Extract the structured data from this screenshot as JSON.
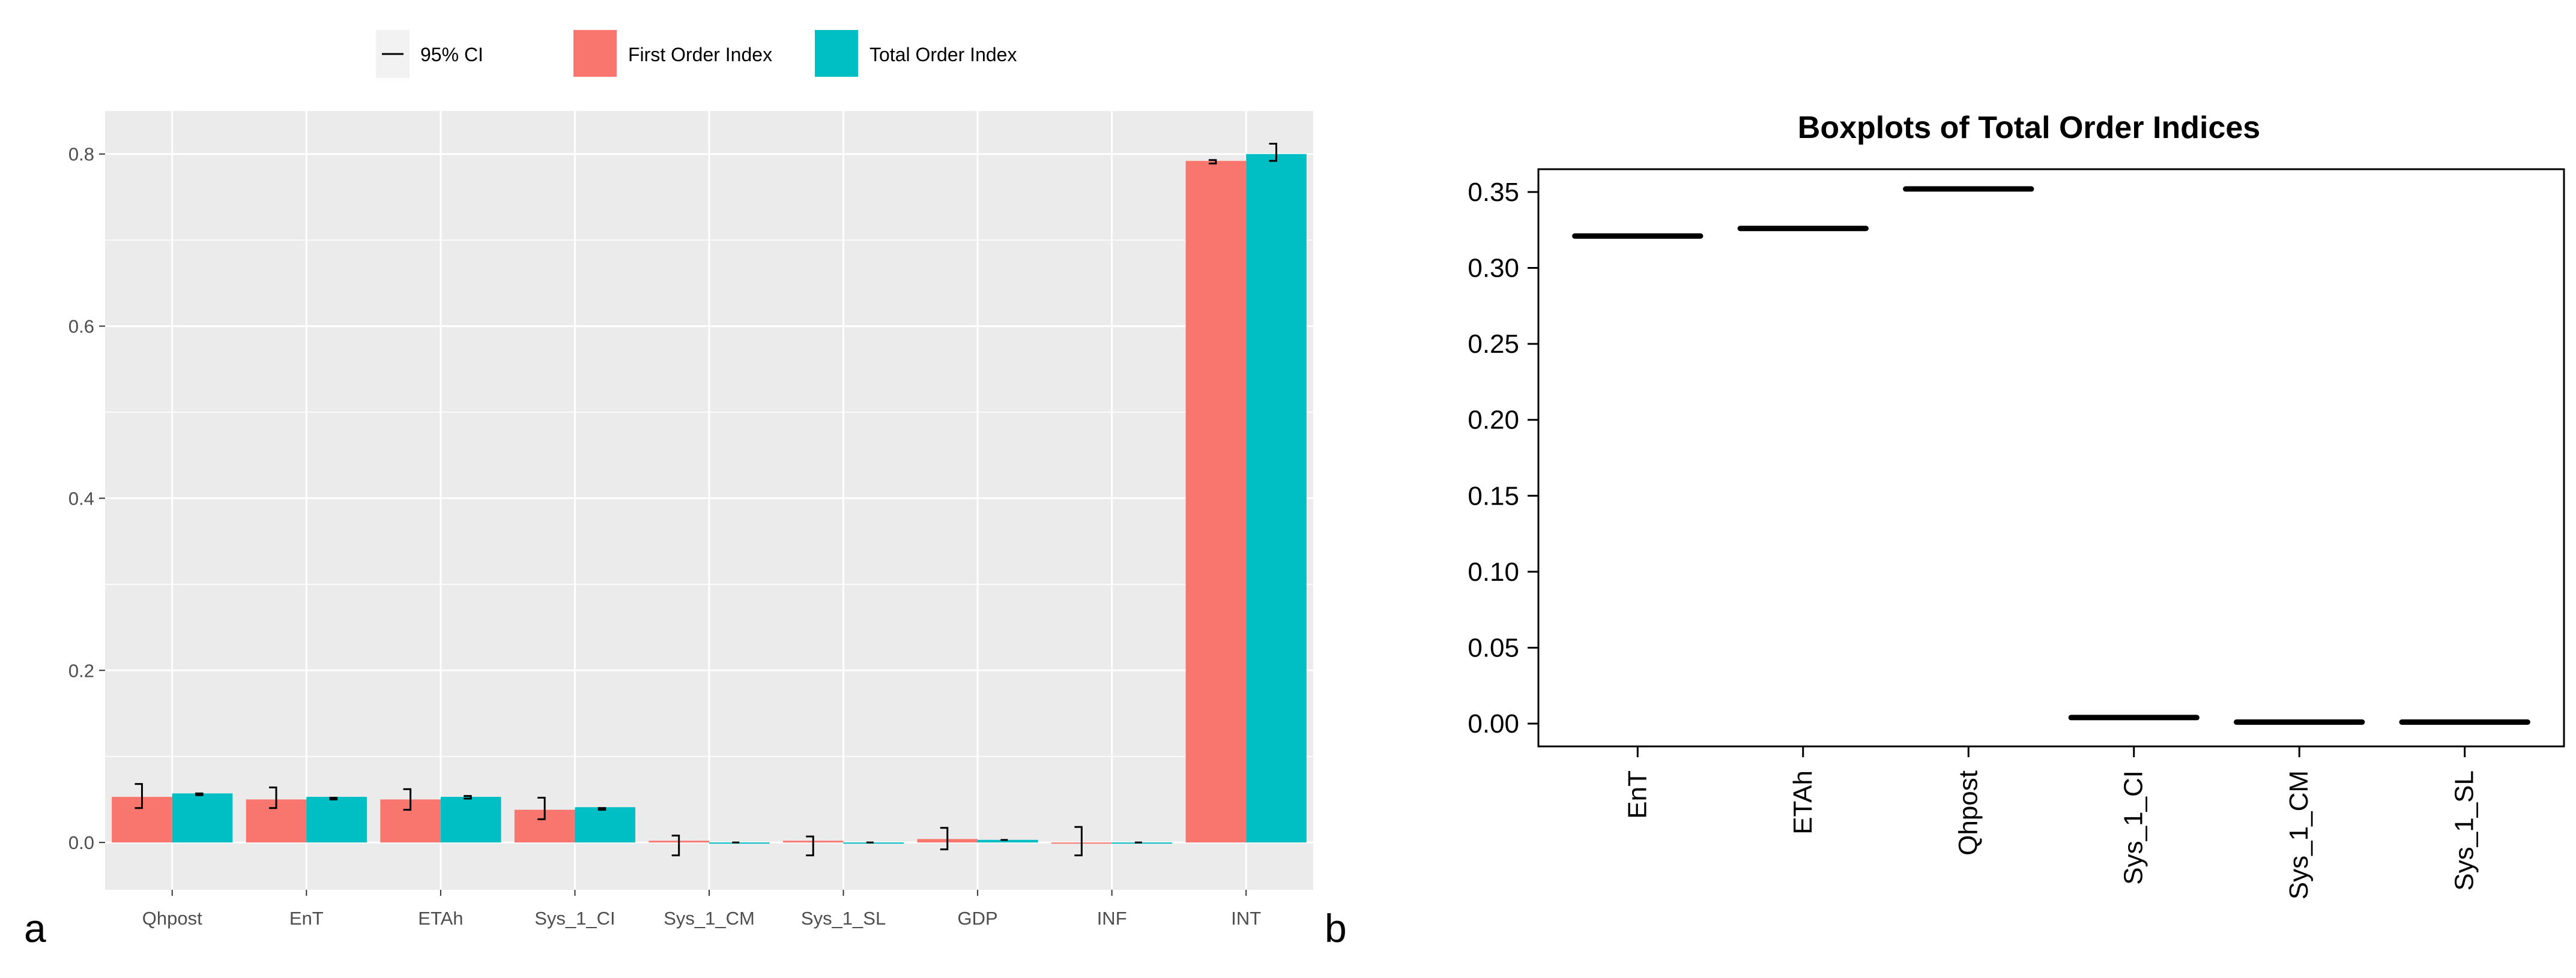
{
  "chart_data": [
    {
      "type": "bar",
      "panel_label": "a",
      "categories": [
        "Qhpost",
        "EnT",
        "ETAh",
        "Sys_1_CI",
        "Sys_1_CM",
        "Sys_1_SL",
        "GDP",
        "INF",
        "INT"
      ],
      "series": [
        {
          "name": "First Order Index",
          "color": "#F8766D",
          "values": [
            0.053,
            0.05,
            0.05,
            0.038,
            0.002,
            0.002,
            0.004,
            0.0,
            0.792
          ],
          "ci": [
            [
              0.04,
              0.068
            ],
            [
              0.04,
              0.064
            ],
            [
              0.038,
              0.062
            ],
            [
              0.027,
              0.052
            ],
            [
              -0.015,
              0.008
            ],
            [
              -0.015,
              0.007
            ],
            [
              -0.008,
              0.017
            ],
            [
              -0.015,
              0.018
            ],
            [
              0.789,
              0.793
            ]
          ]
        },
        {
          "name": "Total Order Index",
          "color": "#00BFC4",
          "values": [
            0.057,
            0.053,
            0.053,
            0.041,
            0.0,
            0.0,
            0.003,
            0.0,
            0.8
          ],
          "ci": [
            [
              0.055,
              0.057
            ],
            [
              0.05,
              0.052
            ],
            [
              0.051,
              0.054
            ],
            [
              0.038,
              0.04
            ],
            [
              0.0,
              0.0
            ],
            [
              0.0,
              0.0
            ],
            [
              0.003,
              0.003
            ],
            [
              0.0,
              0.0
            ],
            [
              0.792,
              0.812
            ]
          ]
        }
      ],
      "legend": {
        "ci_label": "95% CI",
        "first_label": "First Order Index",
        "total_label": "Total Order Index"
      },
      "ylim": [
        -0.055,
        0.85
      ],
      "yticks": [
        "0.0",
        "0.2",
        "0.4",
        "0.6",
        "0.8"
      ],
      "ytick_values": [
        0.0,
        0.2,
        0.4,
        0.6,
        0.8
      ],
      "title": "",
      "xlabel": "",
      "ylabel": ""
    },
    {
      "type": "boxplot",
      "panel_label": "b",
      "title": "Boxplots of Total Order Indices",
      "categories": [
        "EnT",
        "ETAh",
        "Qhpost",
        "Sys_1_CI",
        "Sys_1_CM",
        "Sys_1_SL"
      ],
      "medians": [
        0.321,
        0.326,
        0.352,
        0.004,
        0.001,
        0.001
      ],
      "ylim": [
        -0.015,
        0.365
      ],
      "yticks": [
        "0.00",
        "0.05",
        "0.10",
        "0.15",
        "0.20",
        "0.25",
        "0.30",
        "0.35"
      ],
      "ytick_values": [
        0.0,
        0.05,
        0.1,
        0.15,
        0.2,
        0.25,
        0.3,
        0.35
      ],
      "xlabel": "",
      "ylabel": ""
    }
  ]
}
